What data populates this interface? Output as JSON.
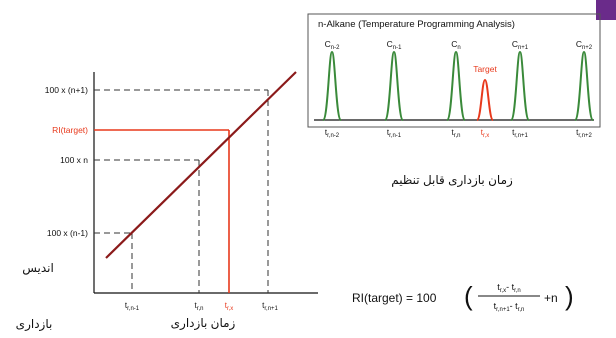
{
  "colors": {
    "accent": "#6a2b8a",
    "line": "#8b1a1a",
    "target": "#e8391c",
    "peak": "#3a8a3a",
    "dash": "#333333",
    "text": "#111111"
  },
  "left_chart": {
    "y_ticks": [
      "100 x (n+1)",
      "RI(target)",
      "100 x n",
      "100 x (n-1)"
    ],
    "x_ticks": [
      {
        "main": "t",
        "sub": "r,n-1"
      },
      {
        "main": "t",
        "sub": "r,n"
      },
      {
        "main": "t",
        "sub": "r,x"
      },
      {
        "main": "t",
        "sub": "r,n+1"
      }
    ],
    "y_axis_label_top": "اندیس",
    "y_axis_label_bottom": "بازداری",
    "x_axis_label": "زمان بازداری"
  },
  "right_chart": {
    "title": "n-Alkane (Temperature Programming Analysis)",
    "target_label": "Target",
    "peaks": [
      {
        "main": "C",
        "sub": "n-2"
      },
      {
        "main": "C",
        "sub": "n-1"
      },
      {
        "main": "C",
        "sub": "n"
      },
      {
        "main": "C",
        "sub": "n+1"
      },
      {
        "main": "C",
        "sub": "n+2"
      }
    ],
    "x_ticks": [
      {
        "main": "t",
        "sub": "r,n-2"
      },
      {
        "main": "t",
        "sub": "r,n-1"
      },
      {
        "main": "t",
        "sub": "r,n"
      },
      {
        "main": "t",
        "sub": "r,x"
      },
      {
        "main": "t",
        "sub": "r,n+1"
      },
      {
        "main": "t",
        "sub": "r,n+2"
      }
    ],
    "x_axis_label": "زمان بازداری قابل تنظیم"
  },
  "formula": {
    "lhs": "RI(target) = 100",
    "numerator": "t",
    "numerator_sub1": "r,x",
    "numerator_mid": "- t",
    "numerator_sub2": "r,n",
    "denominator": "t",
    "denominator_sub1": "r,n+1",
    "denominator_mid": "- t",
    "denominator_sub2": "r,n",
    "tail": "+n"
  }
}
